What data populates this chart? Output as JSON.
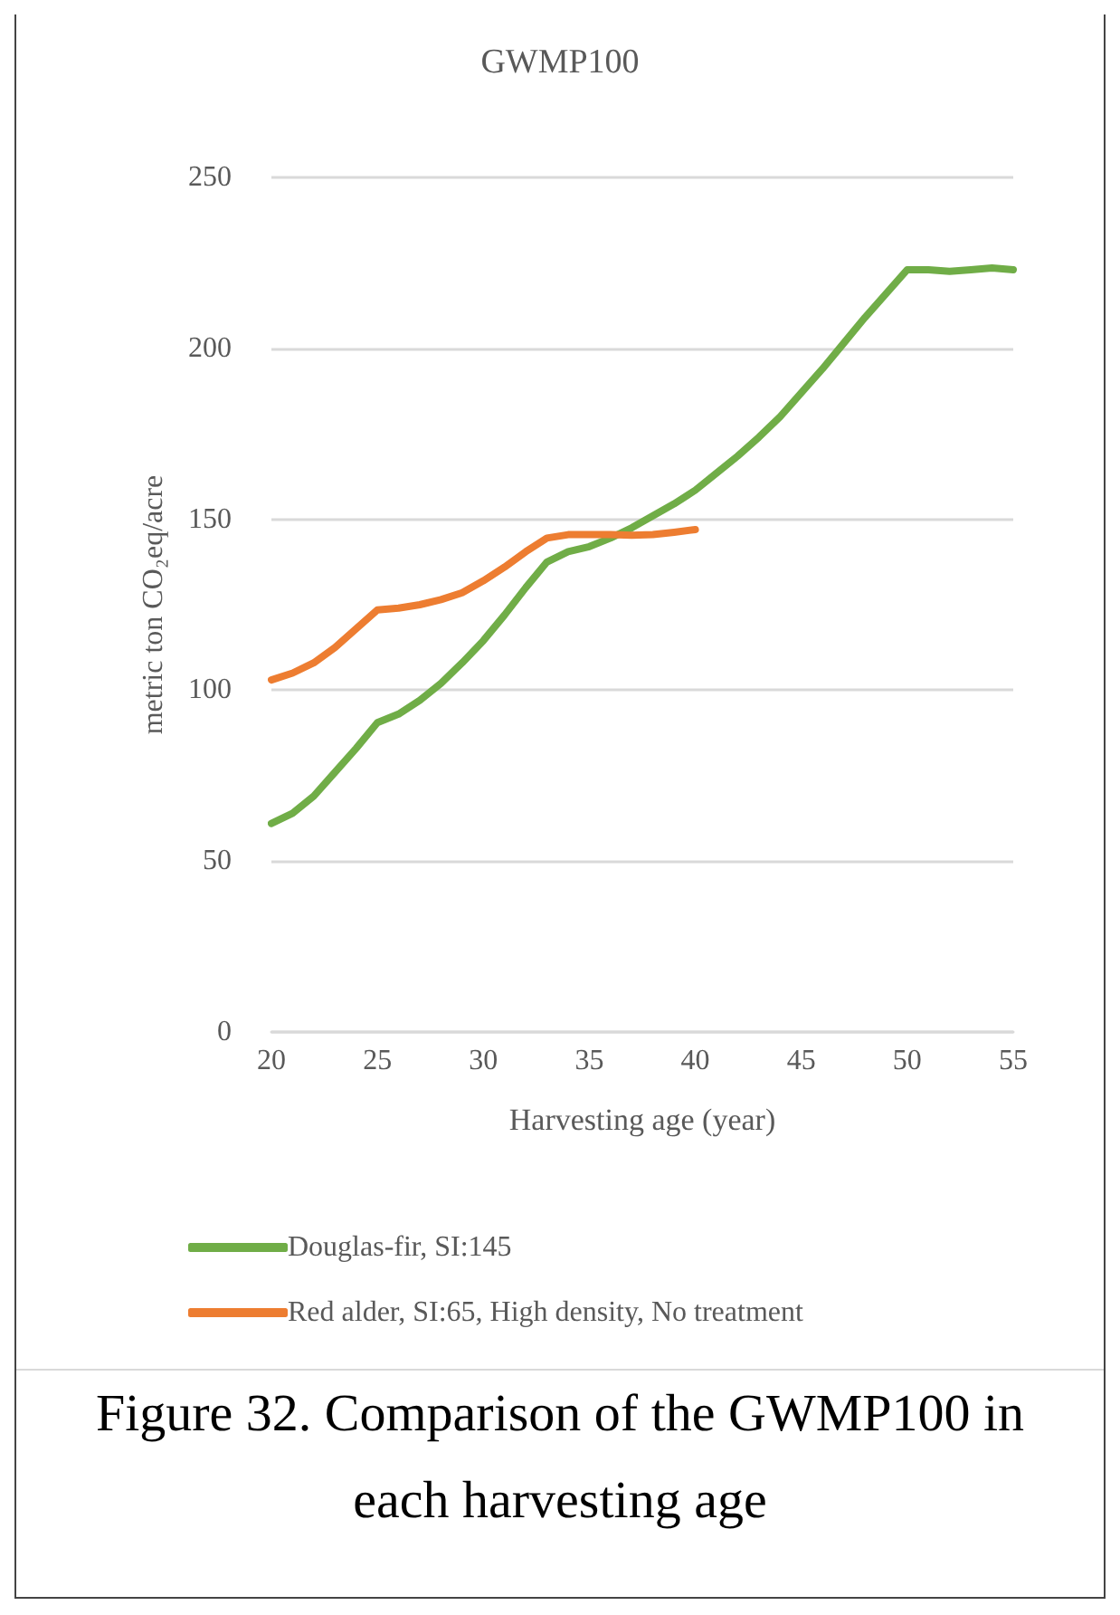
{
  "chart_data": {
    "type": "line",
    "title": "GWMP100",
    "xlabel": "Harvesting age (year)",
    "ylabel": "metric ton CO₂eq/acre",
    "xlim": [
      20,
      55
    ],
    "xticks": [
      20,
      25,
      30,
      35,
      40,
      45,
      50,
      55
    ],
    "ylim": [
      0,
      250
    ],
    "yticks": [
      0,
      50,
      100,
      150,
      200,
      250
    ],
    "grid": "y",
    "legend": "bottom",
    "marker": "none",
    "line_style": "solid",
    "series": [
      {
        "name": "Douglas-fir, SI:145",
        "color": "#70ad47",
        "x": [
          20,
          21,
          22,
          23,
          24,
          25,
          26,
          27,
          28,
          29,
          30,
          31,
          32,
          33,
          34,
          35,
          36,
          37,
          38,
          39,
          40,
          41,
          42,
          43,
          44,
          45,
          46,
          47,
          48,
          49,
          50,
          51,
          52,
          53,
          54,
          55
        ],
        "values": [
          61,
          64,
          69,
          76,
          83,
          90.5,
          93,
          97,
          102,
          108,
          114.5,
          122,
          130,
          137.5,
          140.5,
          142,
          144.5,
          147.5,
          151,
          154.5,
          158.5,
          163.5,
          168.5,
          174,
          180,
          187,
          194,
          201.5,
          209,
          216,
          223,
          223,
          222.5,
          223,
          223.5,
          223
        ]
      },
      {
        "name": "Red alder, SI:65, High density, No treatment",
        "color": "#ed7d31",
        "x": [
          20,
          21,
          22,
          23,
          24,
          25,
          26,
          27,
          28,
          29,
          30,
          31,
          32,
          33,
          34,
          35,
          36,
          37,
          38,
          39,
          40
        ],
        "values": [
          103,
          105,
          108,
          112.5,
          118,
          123.5,
          124,
          125,
          126.5,
          128.5,
          132,
          136,
          140.5,
          144.5,
          145.5,
          145.5,
          145.5,
          145.3,
          145.5,
          146.2,
          147
        ]
      }
    ],
    "annotations": [
      "Figure 32. Comparison of the GWMP100 in each harvesting age"
    ]
  }
}
